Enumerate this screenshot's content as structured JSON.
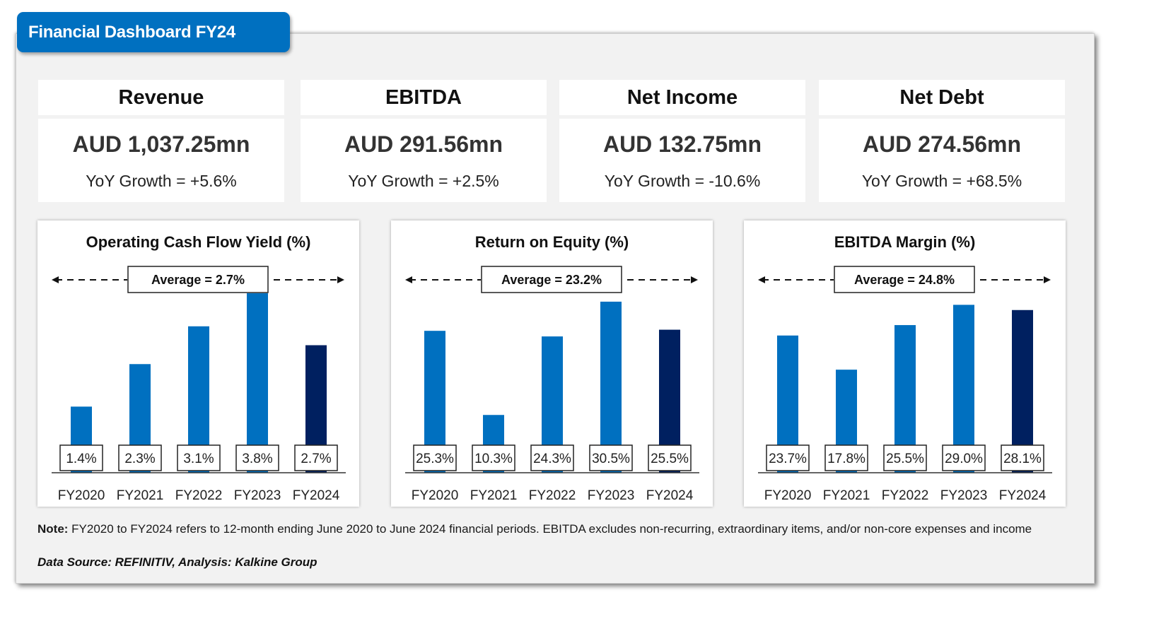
{
  "header": {
    "title": "Financial Dashboard FY24"
  },
  "kpis": [
    {
      "label": "Revenue",
      "value": "AUD 1,037.25mn",
      "growth": "YoY Growth = +5.6%"
    },
    {
      "label": "EBITDA",
      "value": "AUD 291.56mn",
      "growth": "YoY Growth = +2.5%"
    },
    {
      "label": "Net Income",
      "value": "AUD 132.75mn",
      "growth": "YoY Growth = -10.6%"
    },
    {
      "label": "Net Debt",
      "value": "AUD 274.56mn",
      "growth": "YoY Growth = +68.5%"
    }
  ],
  "colors": {
    "accent": "#0070c0",
    "bar": "#0070c0",
    "bar_highlight": "#002060"
  },
  "chart_data": [
    {
      "type": "bar",
      "title": "Operating Cash Flow Yield (%)",
      "categories": [
        "FY2020",
        "FY2021",
        "FY2022",
        "FY2023",
        "FY2024"
      ],
      "values": [
        1.4,
        2.3,
        3.1,
        3.8,
        2.7
      ],
      "labels": [
        "1.4%",
        "2.3%",
        "3.1%",
        "3.8%",
        "2.7%"
      ],
      "average_label": "Average = 2.7%",
      "highlight_index": 4,
      "xlabel": "",
      "ylabel": "",
      "ylim": [
        0,
        3.8
      ],
      "grid": false
    },
    {
      "type": "bar",
      "title": "Return on Equity (%)",
      "categories": [
        "FY2020",
        "FY2021",
        "FY2022",
        "FY2023",
        "FY2024"
      ],
      "values": [
        25.3,
        10.3,
        24.3,
        30.5,
        25.5
      ],
      "labels": [
        "25.3%",
        "10.3%",
        "24.3%",
        "30.5%",
        "25.5%"
      ],
      "average_label": "Average = 23.2%",
      "highlight_index": 4,
      "xlabel": "",
      "ylabel": "",
      "ylim": [
        0,
        32
      ],
      "grid": false
    },
    {
      "type": "bar",
      "title": "EBITDA Margin (%)",
      "categories": [
        "FY2020",
        "FY2021",
        "FY2022",
        "FY2023",
        "FY2024"
      ],
      "values": [
        23.7,
        17.8,
        25.5,
        29.0,
        28.1
      ],
      "labels": [
        "23.7%",
        "17.8%",
        "25.5%",
        "29.0%",
        "28.1%"
      ],
      "average_label": "Average = 24.8%",
      "highlight_index": 4,
      "xlabel": "",
      "ylabel": "",
      "ylim": [
        0,
        31
      ],
      "grid": false
    }
  ],
  "footer": {
    "note_label": "Note:",
    "note_text": " FY2020 to FY2024 refers to 12-month ending June 2020 to June 2024 financial periods. EBITDA excludes non-recurring, extraordinary items, and/or non-core expenses and income",
    "source": "Data Source: REFINITIV, Analysis: Kalkine Group"
  }
}
